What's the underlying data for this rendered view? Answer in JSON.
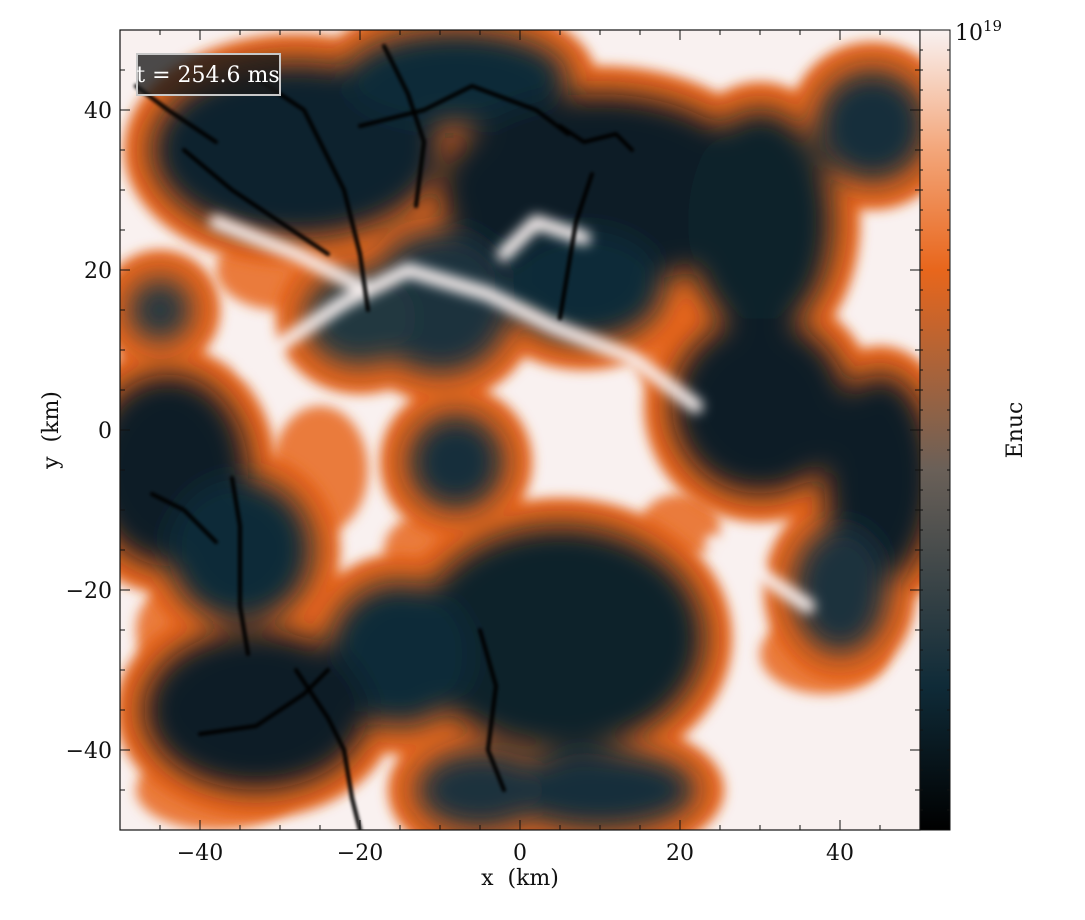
{
  "chart_data": {
    "type": "heatmap",
    "title": "",
    "xlabel": "x  (km)",
    "ylabel": "y  (km)",
    "xlim": [
      -50,
      50
    ],
    "ylim": [
      -50,
      50
    ],
    "xticks": [
      -40,
      -20,
      0,
      20,
      40
    ],
    "yticks": [
      -40,
      -20,
      0,
      20,
      40
    ],
    "xtick_labels": [
      "−40",
      "−20",
      "0",
      "20",
      "40"
    ],
    "ytick_labels": [
      "−40",
      "−20",
      "0",
      "20",
      "40"
    ],
    "annotation": "t = 254.6 ms",
    "colorbar": {
      "label": "Enuc",
      "max_label_base": "10",
      "max_label_exp": "19",
      "stops": [
        "#000000",
        "#0f2b38",
        "#6a6058",
        "#e8661c",
        "#f3a67a",
        "#f9f1f0"
      ]
    },
    "blobs": [
      {
        "x": -28,
        "y": 35,
        "rx": 18,
        "ry": 11,
        "level": 0.15
      },
      {
        "x": -8,
        "y": 44,
        "rx": 14,
        "ry": 6,
        "level": 0.18
      },
      {
        "x": 10,
        "y": 30,
        "rx": 20,
        "ry": 12,
        "level": 0.12
      },
      {
        "x": 30,
        "y": 26,
        "rx": 9,
        "ry": 14,
        "level": 0.14
      },
      {
        "x": 44,
        "y": 38,
        "rx": 7,
        "ry": 7,
        "level": 0.2
      },
      {
        "x": -10,
        "y": 16,
        "rx": 9,
        "ry": 9,
        "level": 0.22
      },
      {
        "x": 8,
        "y": 18,
        "rx": 10,
        "ry": 7,
        "level": 0.18
      },
      {
        "x": -44,
        "y": -5,
        "rx": 10,
        "ry": 12,
        "level": 0.12
      },
      {
        "x": -8,
        "y": -4,
        "rx": 6,
        "ry": 6,
        "level": 0.2
      },
      {
        "x": 30,
        "y": 3,
        "rx": 11,
        "ry": 11,
        "level": 0.13
      },
      {
        "x": 45,
        "y": -6,
        "rx": 7,
        "ry": 13,
        "level": 0.12
      },
      {
        "x": 5,
        "y": -26,
        "rx": 18,
        "ry": 14,
        "level": 0.14
      },
      {
        "x": -15,
        "y": -28,
        "rx": 9,
        "ry": 9,
        "level": 0.18
      },
      {
        "x": -33,
        "y": -35,
        "rx": 14,
        "ry": 10,
        "level": 0.13
      },
      {
        "x": -35,
        "y": -15,
        "rx": 9,
        "ry": 9,
        "level": 0.18
      },
      {
        "x": -20,
        "y": 14,
        "rx": 7,
        "ry": 6,
        "level": 0.24
      },
      {
        "x": 10,
        "y": -45,
        "rx": 12,
        "ry": 5,
        "level": 0.2
      },
      {
        "x": 40,
        "y": -20,
        "rx": 6,
        "ry": 8,
        "level": 0.22
      },
      {
        "x": -45,
        "y": 15,
        "rx": 4,
        "ry": 4,
        "level": 0.25
      },
      {
        "x": -5,
        "y": -45,
        "rx": 8,
        "ry": 5,
        "level": 0.22
      }
    ],
    "rims": [
      {
        "x": -30,
        "y": 20,
        "rx": 8,
        "ry": 5
      },
      {
        "x": 20,
        "y": 10,
        "rx": 6,
        "ry": 6
      },
      {
        "x": -25,
        "y": -5,
        "rx": 6,
        "ry": 8
      },
      {
        "x": 38,
        "y": -28,
        "rx": 8,
        "ry": 5
      },
      {
        "x": -10,
        "y": -15,
        "rx": 7,
        "ry": 5
      },
      {
        "x": -38,
        "y": -45,
        "rx": 10,
        "ry": 5
      },
      {
        "x": 15,
        "y": 38,
        "rx": 6,
        "ry": 4
      },
      {
        "x": -42,
        "y": -25,
        "rx": 6,
        "ry": 6
      },
      {
        "x": 20,
        "y": -12,
        "rx": 5,
        "ry": 4
      },
      {
        "x": -15,
        "y": 35,
        "rx": 5,
        "ry": 5
      }
    ],
    "filaments": [
      [
        [
          -33,
          44
        ],
        [
          -27,
          40
        ],
        [
          -22,
          30
        ],
        [
          -20,
          22
        ],
        [
          -19,
          15
        ]
      ],
      [
        [
          -17,
          48
        ],
        [
          -14,
          42
        ],
        [
          -12,
          36
        ],
        [
          -13,
          28
        ]
      ],
      [
        [
          -20,
          38
        ],
        [
          -12,
          40
        ],
        [
          -6,
          43
        ],
        [
          2,
          40
        ],
        [
          6,
          37
        ]
      ],
      [
        [
          5,
          38
        ],
        [
          8,
          36
        ],
        [
          12,
          37
        ],
        [
          14,
          35
        ]
      ],
      [
        [
          -42,
          35
        ],
        [
          -36,
          30
        ],
        [
          -30,
          26
        ],
        [
          -24,
          22
        ]
      ],
      [
        [
          5,
          14
        ],
        [
          6,
          20
        ],
        [
          7,
          26
        ],
        [
          9,
          32
        ]
      ],
      [
        [
          -36,
          -6
        ],
        [
          -35,
          -12
        ],
        [
          -35,
          -22
        ],
        [
          -34,
          -28
        ]
      ],
      [
        [
          -28,
          -30
        ],
        [
          -24,
          -36
        ],
        [
          -22,
          -40
        ],
        [
          -21,
          -46
        ],
        [
          -20,
          -50
        ]
      ],
      [
        [
          -40,
          -38
        ],
        [
          -33,
          -37
        ],
        [
          -27,
          -33
        ],
        [
          -24,
          -30
        ]
      ],
      [
        [
          -5,
          -25
        ],
        [
          -3,
          -32
        ],
        [
          -4,
          -40
        ],
        [
          -2,
          -45
        ]
      ],
      [
        [
          -48,
          43
        ],
        [
          -44,
          40
        ],
        [
          -38,
          36
        ]
      ],
      [
        [
          -46,
          -8
        ],
        [
          -42,
          -10
        ],
        [
          -38,
          -14
        ]
      ]
    ],
    "streaks": [
      [
        [
          -34,
          8
        ],
        [
          -22,
          16
        ],
        [
          -14,
          20
        ],
        [
          -4,
          17
        ],
        [
          4,
          13
        ],
        [
          14,
          9
        ],
        [
          22,
          3
        ]
      ],
      [
        [
          -38,
          26
        ],
        [
          -28,
          22
        ],
        [
          -20,
          18
        ]
      ],
      [
        [
          -2,
          22
        ],
        [
          2,
          26
        ],
        [
          8,
          24
        ]
      ],
      [
        [
          24,
          -14
        ],
        [
          30,
          -18
        ],
        [
          36,
          -22
        ]
      ]
    ]
  }
}
